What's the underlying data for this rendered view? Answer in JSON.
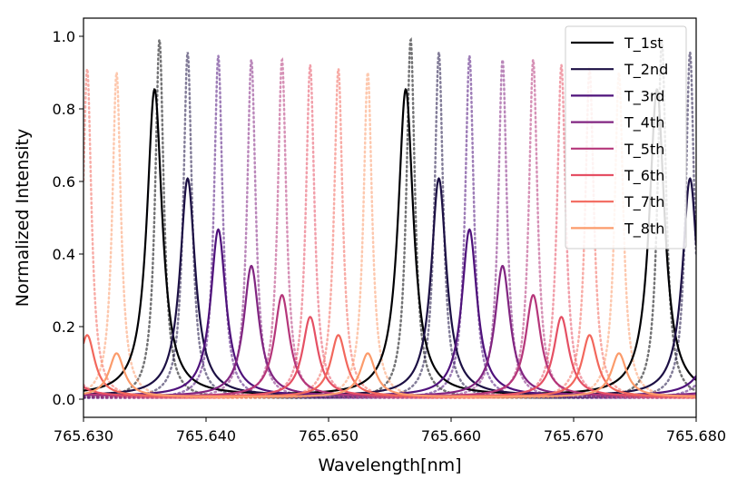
{
  "chart_data": {
    "type": "line",
    "title": "",
    "xlabel": "Wavelength[nm]",
    "ylabel": "Normalized Intensity",
    "xlim": [
      765.63,
      765.68
    ],
    "ylim": [
      -0.05,
      1.05
    ],
    "xticks": [
      765.63,
      765.64,
      765.65,
      765.66,
      765.67,
      765.68
    ],
    "xtick_labels": [
      "765.630",
      "765.640",
      "765.650",
      "765.660",
      "765.670",
      "765.680"
    ],
    "yticks": [
      0.0,
      0.2,
      0.4,
      0.6,
      0.8,
      1.0
    ],
    "ytick_labels": [
      "0.0",
      "0.2",
      "0.4",
      "0.6",
      "0.8",
      "1.0"
    ],
    "grid": false,
    "legend_position": "top-right",
    "fsr_nm": 0.0205,
    "series": [
      {
        "name": "T_1st",
        "color": "#000004",
        "center": 765.6358,
        "peak": 0.845,
        "hwhm": 0.00075,
        "dotted_center": 765.6362,
        "dotted_peak": 0.99
      },
      {
        "name": "T_2nd",
        "color": "#1c1044",
        "center": 765.6385,
        "peak": 0.6,
        "hwhm": 0.00075,
        "dotted_center": 765.6385,
        "dotted_peak": 0.955
      },
      {
        "name": "T_3rd",
        "color": "#4f127b",
        "center": 765.641,
        "peak": 0.46,
        "hwhm": 0.00075,
        "dotted_center": 765.641,
        "dotted_peak": 0.945
      },
      {
        "name": "T_4th",
        "color": "#812581",
        "center": 765.6437,
        "peak": 0.36,
        "hwhm": 0.00075,
        "dotted_center": 765.6437,
        "dotted_peak": 0.935
      },
      {
        "name": "T_5th",
        "color": "#b5367a",
        "center": 765.6462,
        "peak": 0.28,
        "hwhm": 0.00075,
        "dotted_center": 765.6462,
        "dotted_peak": 0.935
      },
      {
        "name": "T_6th",
        "color": "#e55064",
        "center": 765.6485,
        "peak": 0.22,
        "hwhm": 0.00075,
        "dotted_center": 765.6485,
        "dotted_peak": 0.92
      },
      {
        "name": "T_7th",
        "color": "#f2675c",
        "center": 765.6508,
        "peak": 0.17,
        "hwhm": 0.00075,
        "dotted_center": 765.6508,
        "dotted_peak": 0.91
      },
      {
        "name": "T_8th",
        "color": "#fb9b6b",
        "center": 765.6532,
        "peak": 0.12,
        "hwhm": 0.00075,
        "dotted_center": 765.6532,
        "dotted_peak": 0.9
      }
    ]
  }
}
